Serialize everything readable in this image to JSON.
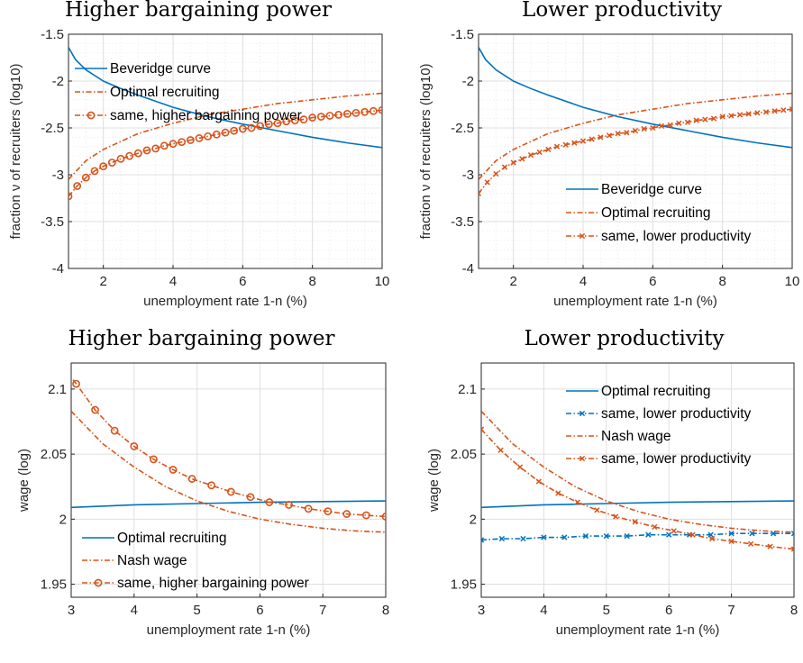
{
  "colors": {
    "blue": "#0072BD",
    "orange": "#D95319",
    "grid": "#DFDFDF",
    "minorgrid": "#EFEFEF",
    "axis": "#262626"
  },
  "chart_data": [
    {
      "type": "line",
      "title": "Higher bargaining power",
      "xlabel": "unemployment rate 1-n (%)",
      "ylabel": "fraction ν of recruiters (log10)",
      "xlim": [
        1,
        10
      ],
      "ylim": [
        -4,
        -1.5
      ],
      "log_scale": false,
      "grid": "major and minor",
      "x_ticks": [
        2,
        4,
        6,
        8,
        10
      ],
      "y_ticks": [
        -4,
        -3.5,
        -3,
        -2.5,
        -2,
        -1.5
      ],
      "x_tick_labels": [
        "2",
        "4",
        "6",
        "8",
        "10"
      ],
      "y_tick_labels": [
        "-4",
        "-3.5",
        "-3",
        "-2.5",
        "-2",
        "-1.5"
      ],
      "legend_position": "top-left",
      "series": [
        {
          "name": "Beveridge curve",
          "color": "#0072BD",
          "style": "solid",
          "marker": "none",
          "x": [
            1,
            1.2,
            1.5,
            2,
            2.5,
            3,
            4,
            5,
            6,
            7,
            8,
            9,
            10
          ],
          "y": [
            -1.64,
            -1.77,
            -1.88,
            -2.0,
            -2.08,
            -2.15,
            -2.28,
            -2.38,
            -2.46,
            -2.53,
            -2.6,
            -2.66,
            -2.71
          ]
        },
        {
          "name": "Optimal recruiting",
          "color": "#D95319",
          "style": "dashdot",
          "marker": "none",
          "x": [
            1,
            1.5,
            2,
            3,
            4,
            5,
            6,
            7,
            8,
            9,
            10
          ],
          "y": [
            -3.05,
            -2.85,
            -2.73,
            -2.56,
            -2.45,
            -2.36,
            -2.3,
            -2.24,
            -2.2,
            -2.16,
            -2.13
          ]
        },
        {
          "name": "same, higher bargaining power",
          "color": "#D95319",
          "style": "dashdot",
          "marker": "circle",
          "x": [
            1,
            1.25,
            1.5,
            1.75,
            2,
            2.25,
            2.5,
            2.75,
            3,
            3.25,
            3.5,
            3.75,
            4,
            4.25,
            4.5,
            4.75,
            5,
            5.25,
            5.5,
            5.75,
            6,
            6.25,
            6.5,
            6.75,
            7,
            7.25,
            7.5,
            7.75,
            8,
            8.25,
            8.5,
            8.75,
            9,
            9.25,
            9.5,
            9.75,
            10
          ],
          "y": [
            -3.23,
            -3.12,
            -3.03,
            -2.96,
            -2.91,
            -2.87,
            -2.83,
            -2.8,
            -2.77,
            -2.74,
            -2.72,
            -2.69,
            -2.67,
            -2.65,
            -2.63,
            -2.61,
            -2.59,
            -2.57,
            -2.55,
            -2.53,
            -2.51,
            -2.5,
            -2.48,
            -2.46,
            -2.45,
            -2.43,
            -2.42,
            -2.41,
            -2.39,
            -2.38,
            -2.37,
            -2.36,
            -2.35,
            -2.34,
            -2.33,
            -2.32,
            -2.31
          ]
        }
      ]
    },
    {
      "type": "line",
      "title": "Lower productivity",
      "xlabel": "unemployment rate 1-n (%)",
      "ylabel": "fraction ν of recruiters (log10)",
      "xlim": [
        1,
        10
      ],
      "ylim": [
        -4,
        -1.5
      ],
      "log_scale": false,
      "grid": "major and minor",
      "x_ticks": [
        2,
        4,
        6,
        8,
        10
      ],
      "y_ticks": [
        -4,
        -3.5,
        -3,
        -2.5,
        -2,
        -1.5
      ],
      "x_tick_labels": [
        "2",
        "4",
        "6",
        "8",
        "10"
      ],
      "y_tick_labels": [
        "-4",
        "-3.5",
        "-3",
        "-2.5",
        "-2",
        "-1.5"
      ],
      "legend_position": "bottom-right",
      "series": [
        {
          "name": "Beveridge curve",
          "color": "#0072BD",
          "style": "solid",
          "marker": "none",
          "x": [
            1,
            1.2,
            1.5,
            2,
            2.5,
            3,
            4,
            5,
            6,
            7,
            8,
            9,
            10
          ],
          "y": [
            -1.64,
            -1.77,
            -1.88,
            -2.0,
            -2.08,
            -2.15,
            -2.28,
            -2.38,
            -2.46,
            -2.53,
            -2.6,
            -2.66,
            -2.71
          ]
        },
        {
          "name": "Optimal recruiting",
          "color": "#D95319",
          "style": "dashdot",
          "marker": "none",
          "x": [
            1,
            1.5,
            2,
            3,
            4,
            5,
            6,
            7,
            8,
            9,
            10
          ],
          "y": [
            -3.05,
            -2.85,
            -2.73,
            -2.56,
            -2.45,
            -2.36,
            -2.3,
            -2.24,
            -2.2,
            -2.16,
            -2.13
          ]
        },
        {
          "name": "same, lower productivity",
          "color": "#D95319",
          "style": "dashdot",
          "marker": "x",
          "x": [
            1,
            1.25,
            1.5,
            1.75,
            2,
            2.25,
            2.5,
            2.75,
            3,
            3.25,
            3.5,
            3.75,
            4,
            4.25,
            4.5,
            4.75,
            5,
            5.25,
            5.5,
            5.75,
            6,
            6.25,
            6.5,
            6.75,
            7,
            7.25,
            7.5,
            7.75,
            8,
            8.25,
            8.5,
            8.75,
            9,
            9.25,
            9.5,
            9.75,
            10
          ],
          "y": [
            -3.2,
            -3.08,
            -2.99,
            -2.92,
            -2.87,
            -2.83,
            -2.79,
            -2.76,
            -2.73,
            -2.7,
            -2.68,
            -2.66,
            -2.64,
            -2.62,
            -2.6,
            -2.58,
            -2.56,
            -2.55,
            -2.53,
            -2.51,
            -2.5,
            -2.48,
            -2.47,
            -2.45,
            -2.44,
            -2.42,
            -2.41,
            -2.4,
            -2.38,
            -2.37,
            -2.36,
            -2.35,
            -2.34,
            -2.33,
            -2.32,
            -2.31,
            -2.3
          ]
        }
      ]
    },
    {
      "type": "line",
      "title": "Higher bargaining power",
      "xlabel": "unemployment rate 1-n (%)",
      "ylabel": "wage (log)",
      "xlim": [
        3,
        8
      ],
      "ylim": [
        1.94,
        2.12
      ],
      "log_scale": false,
      "grid": "major",
      "x_ticks": [
        3,
        4,
        5,
        6,
        7,
        8
      ],
      "y_ticks": [
        1.95,
        2,
        2.05,
        2.1
      ],
      "x_tick_labels": [
        "3",
        "4",
        "5",
        "6",
        "7",
        "8"
      ],
      "y_tick_labels": [
        "1.95",
        "2",
        "2.05",
        "2.1"
      ],
      "legend_position": "bottom-left",
      "series": [
        {
          "name": "Optimal recruiting",
          "color": "#0072BD",
          "style": "solid",
          "marker": "none",
          "x": [
            3,
            4,
            5,
            6,
            7,
            8
          ],
          "y": [
            2.009,
            2.011,
            2.012,
            2.013,
            2.0135,
            2.014
          ]
        },
        {
          "name": "Nash wage",
          "color": "#D95319",
          "style": "dashdot",
          "marker": "none",
          "x": [
            3,
            3.5,
            4,
            4.5,
            5,
            5.5,
            6,
            6.5,
            7,
            7.5,
            8
          ],
          "y": [
            2.083,
            2.058,
            2.04,
            2.025,
            2.014,
            2.006,
            2.0,
            1.996,
            1.993,
            1.991,
            1.99
          ]
        },
        {
          "name": "same, higher bargaining power",
          "color": "#D95319",
          "style": "dashdot",
          "marker": "circle",
          "x": [
            2.92,
            3.08,
            3.38,
            3.69,
            4.0,
            4.31,
            4.62,
            4.92,
            5.23,
            5.54,
            5.85,
            6.15,
            6.46,
            6.77,
            7.08,
            7.38,
            7.69,
            8.0
          ],
          "y": [
            2.114,
            2.104,
            2.084,
            2.068,
            2.056,
            2.046,
            2.038,
            2.031,
            2.026,
            2.021,
            2.017,
            2.013,
            2.011,
            2.008,
            2.006,
            2.004,
            2.003,
            2.002
          ]
        }
      ]
    },
    {
      "type": "line",
      "title": "Lower productivity",
      "xlabel": "unemployment rate 1-n (%)",
      "ylabel": "wage (log)",
      "xlim": [
        3,
        8
      ],
      "ylim": [
        1.94,
        2.12
      ],
      "log_scale": false,
      "grid": "major",
      "x_ticks": [
        3,
        4,
        5,
        6,
        7,
        8
      ],
      "y_ticks": [
        1.95,
        2,
        2.05,
        2.1
      ],
      "x_tick_labels": [
        "3",
        "4",
        "5",
        "6",
        "7",
        "8"
      ],
      "y_tick_labels": [
        "1.95",
        "2",
        "2.05",
        "2.1"
      ],
      "legend_position": "top-right",
      "series": [
        {
          "name": "Optimal recruiting",
          "color": "#0072BD",
          "style": "solid",
          "marker": "none",
          "x": [
            3,
            4,
            5,
            6,
            7,
            8
          ],
          "y": [
            2.009,
            2.011,
            2.012,
            2.013,
            2.0135,
            2.014
          ]
        },
        {
          "name": "same, lower productivity",
          "color": "#0072BD",
          "style": "dashdot",
          "marker": "x",
          "x": [
            3,
            3.33,
            3.67,
            4.0,
            4.33,
            4.67,
            5.0,
            5.33,
            5.67,
            6.0,
            6.33,
            6.67,
            7.0,
            7.33,
            7.67,
            8.0
          ],
          "y": [
            1.984,
            1.985,
            1.985,
            1.986,
            1.986,
            1.987,
            1.987,
            1.987,
            1.988,
            1.988,
            1.988,
            1.988,
            1.989,
            1.989,
            1.989,
            1.989
          ]
        },
        {
          "name": "Nash wage",
          "color": "#D95319",
          "style": "dashdot",
          "marker": "none",
          "x": [
            3,
            3.5,
            4,
            4.5,
            5,
            5.5,
            6,
            6.5,
            7,
            7.5,
            8
          ],
          "y": [
            2.083,
            2.058,
            2.04,
            2.025,
            2.014,
            2.006,
            2.0,
            1.996,
            1.993,
            1.991,
            1.99
          ]
        },
        {
          "name": "same, lower productivity",
          "color": "#D95319",
          "style": "dashdot",
          "marker": "x",
          "x": [
            3,
            3.31,
            3.62,
            3.92,
            4.23,
            4.54,
            4.85,
            5.15,
            5.46,
            5.77,
            6.08,
            6.38,
            6.69,
            7.0,
            7.31,
            7.62,
            8.0
          ],
          "y": [
            2.069,
            2.053,
            2.04,
            2.029,
            2.02,
            2.013,
            2.007,
            2.002,
            1.998,
            1.994,
            1.991,
            1.988,
            1.985,
            1.983,
            1.981,
            1.979,
            1.977
          ]
        }
      ]
    }
  ]
}
